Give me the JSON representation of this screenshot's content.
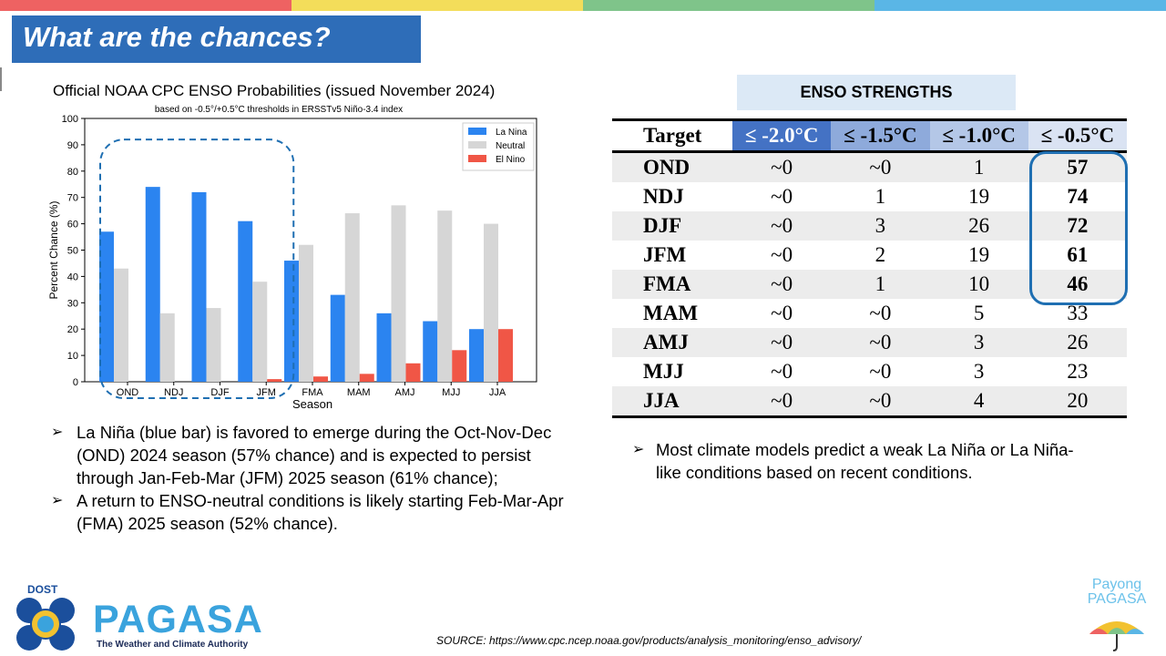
{
  "colors": {
    "top_bar": [
      "#ee6262",
      "#f3dd5a",
      "#7fc48a",
      "#5ab6e6"
    ],
    "title_bg": "#2e6db8",
    "la_nina": "#2b84f0",
    "neutral": "#d6d6d6",
    "el_nino": "#f05646",
    "table_header_strong": "#4472c4",
    "table_header_mid": "#8eaadb",
    "table_header_light": "#b4c7e7",
    "table_header_pale": "#dae3f3",
    "highlight_outline": "#1f6fb2"
  },
  "slide": {
    "title": "What are the chances?"
  },
  "chart_title": "Official NOAA CPC ENSO Probabilities (issued November 2024)",
  "chart_data": {
    "type": "bar",
    "subtitle": "based on -0.5°/+0.5°C thresholds in ERSSTv5 Niño-3.4 index",
    "xlabel": "Season",
    "ylabel": "Percent Chance (%)",
    "ylim": [
      0,
      100
    ],
    "yticks": [
      0,
      10,
      20,
      30,
      40,
      50,
      60,
      70,
      80,
      90,
      100
    ],
    "categories": [
      "OND",
      "NDJ",
      "DJF",
      "JFM",
      "FMA",
      "MAM",
      "AMJ",
      "MJJ",
      "JJA"
    ],
    "series": [
      {
        "name": "La Nina",
        "color": "#2b84f0",
        "values": [
          57,
          74,
          72,
          61,
          46,
          33,
          26,
          23,
          20
        ]
      },
      {
        "name": "Neutral",
        "color": "#d6d6d6",
        "values": [
          43,
          26,
          28,
          38,
          52,
          64,
          67,
          65,
          60
        ]
      },
      {
        "name": "El Nino",
        "color": "#f05646",
        "values": [
          0,
          0,
          0,
          1,
          2,
          3,
          7,
          12,
          20
        ]
      }
    ],
    "legend_position": "top-right",
    "highlight_categories": [
      "OND",
      "NDJ",
      "DJF",
      "JFM"
    ],
    "grid": false
  },
  "left_bullets": [
    "La Niña (blue bar) is favored to emerge during the Oct-Nov-Dec (OND) 2024 season (57% chance) and is expected to persist through Jan-Feb-Mar (JFM) 2025 season (61% chance);",
    "A return to ENSO-neutral conditions is likely starting Feb-Mar-Apr (FMA) 2025 season (52% chance)."
  ],
  "bullet_glyph": "➢",
  "enso_table": {
    "header_label": "ENSO STRENGTHS",
    "columns": [
      "Target",
      "≤ -2.0°C",
      "≤ -1.5°C",
      "≤ -1.0°C",
      "≤ -0.5°C"
    ],
    "rows": [
      [
        "OND",
        "~0",
        "~0",
        "1",
        "57"
      ],
      [
        "NDJ",
        "~0",
        "1",
        "19",
        "74"
      ],
      [
        "DJF",
        "~0",
        "3",
        "26",
        "72"
      ],
      [
        "JFM",
        "~0",
        "2",
        "19",
        "61"
      ],
      [
        "FMA",
        "~0",
        "1",
        "10",
        "46"
      ],
      [
        "MAM",
        "~0",
        "~0",
        "5",
        "33"
      ],
      [
        "AMJ",
        "~0",
        "~0",
        "3",
        "26"
      ],
      [
        "MJJ",
        "~0",
        "~0",
        "3",
        "23"
      ],
      [
        "JJA",
        "~0",
        "~0",
        "4",
        "20"
      ]
    ]
  },
  "right_bullet": "Most climate models predict a weak La Niña or La Niña-like conditions based on recent conditions.",
  "source": "SOURCE: https://www.cpc.ncep.noaa.gov/products/analysis_monitoring/enso_advisory/",
  "logo": {
    "dost": "DOST",
    "pagasa": "PAGASA",
    "tagline": "The Weather and Climate Authority",
    "payong_line1": "Payong",
    "payong_line2": "PAGASA"
  }
}
